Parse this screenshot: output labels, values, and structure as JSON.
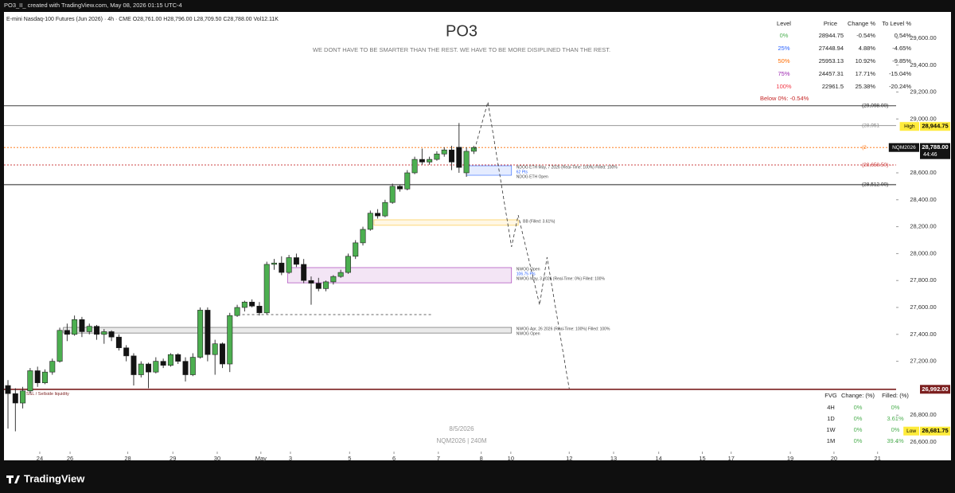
{
  "header": "PO3_II_ created with TradingView.com, May 08, 2026 01:15 UTC-4",
  "footer": "TradingView",
  "chart_data": {
    "type": "candlestick",
    "title": "PO3",
    "subtitle": "WE DONT HAVE TO BE SMARTER THAN THE REST. WE HAVE TO BE MORE DISIPLINED THAN THE REST.",
    "symbol_info": "E-mini Nasdaq-100 Futures (Jun 2026) · 4h · CME  O28,761.00  H28,796.00  L28,709.50  C28,788.00  Vol12.11K",
    "watermark": [
      "8/5/2026",
      "NQM2026 | 240M"
    ],
    "up_color": "#4caf50",
    "down_color": "#131313",
    "open": [
      27020,
      26960,
      26890,
      26980,
      27130,
      27040,
      27120,
      27200,
      27430,
      27400,
      27510,
      27420,
      27460,
      27400,
      27420,
      27380,
      27300,
      27240,
      27100,
      27180,
      27120,
      27200,
      27170,
      27250,
      27200,
      27100,
      27230,
      27580,
      27250,
      27330,
      27180,
      27540,
      27600,
      27640,
      27610,
      27560,
      27920,
      27930,
      27860,
      27970,
      27920,
      27800,
      27780,
      27740,
      27790,
      27830,
      27860,
      27980,
      28080,
      28180,
      28300,
      28280,
      28380,
      28500,
      28480,
      28600,
      28700,
      28680,
      28700,
      28740,
      28770,
      28790,
      28600,
      28760
    ],
    "high": [
      27060,
      27000,
      27010,
      27150,
      27160,
      27140,
      27220,
      27450,
      27480,
      27540,
      27530,
      27480,
      27470,
      27440,
      27430,
      27400,
      27320,
      27260,
      27200,
      27190,
      27230,
      27220,
      27260,
      27260,
      27230,
      27260,
      27600,
      27600,
      27360,
      27340,
      27560,
      27620,
      27650,
      27660,
      27640,
      27940,
      27960,
      27980,
      27990,
      28000,
      27960,
      27830,
      27820,
      27800,
      27840,
      27880,
      28000,
      28100,
      28200,
      28320,
      28330,
      28400,
      28520,
      28510,
      28620,
      28720,
      28780,
      28720,
      28760,
      28790,
      28800,
      28970,
      28790,
      28800
    ],
    "low": [
      26700,
      26680,
      26850,
      26960,
      27010,
      27030,
      27100,
      27190,
      27350,
      27390,
      27380,
      27400,
      27360,
      27330,
      27350,
      27280,
      27200,
      27020,
      27080,
      27000,
      27110,
      27150,
      27160,
      27180,
      27050,
      27090,
      27220,
      27200,
      27100,
      27150,
      27120,
      27530,
      27570,
      27600,
      27540,
      27550,
      27880,
      27840,
      27850,
      27900,
      27780,
      27620,
      27720,
      27720,
      27770,
      27820,
      27850,
      27960,
      28060,
      28170,
      28260,
      28270,
      28370,
      28460,
      28470,
      28590,
      28660,
      28660,
      28690,
      28720,
      28620,
      28600,
      28570,
      28740
    ],
    "close": [
      26960,
      26890,
      26980,
      27130,
      27040,
      27120,
      27200,
      27430,
      27400,
      27510,
      27420,
      27460,
      27400,
      27420,
      27380,
      27300,
      27240,
      27100,
      27180,
      27120,
      27200,
      27170,
      27250,
      27200,
      27100,
      27230,
      27580,
      27250,
      27330,
      27180,
      27540,
      27600,
      27640,
      27610,
      27560,
      27920,
      27930,
      27860,
      27970,
      27920,
      27800,
      27780,
      27740,
      27790,
      27830,
      27860,
      27980,
      28080,
      28180,
      28300,
      28280,
      28380,
      28500,
      28480,
      28600,
      28700,
      28680,
      28700,
      28740,
      28770,
      28680,
      28640,
      28760,
      28788
    ],
    "xlim": [
      -0.54,
      119.46
    ],
    "xticks": [
      {
        "value": 4.3,
        "label": "24"
      },
      {
        "value": 8.4,
        "label": "26"
      },
      {
        "value": 16.2,
        "label": "28"
      },
      {
        "value": 22.3,
        "label": "29"
      },
      {
        "value": 28.3,
        "label": "30"
      },
      {
        "value": 34.2,
        "label": "May"
      },
      {
        "value": 38.2,
        "label": "3"
      },
      {
        "value": 46.2,
        "label": "5"
      },
      {
        "value": 52.2,
        "label": "6"
      },
      {
        "value": 58.2,
        "label": "7"
      },
      {
        "value": 64,
        "label": "8"
      },
      {
        "value": 68,
        "label": "10"
      },
      {
        "value": 75.9,
        "label": "12"
      },
      {
        "value": 81.9,
        "label": "13"
      },
      {
        "value": 88,
        "label": "14"
      },
      {
        "value": 93.9,
        "label": "15"
      },
      {
        "value": 97.8,
        "label": "17"
      },
      {
        "value": 105.8,
        "label": "19"
      },
      {
        "value": 111.7,
        "label": "20"
      },
      {
        "value": 117.6,
        "label": "21"
      }
    ],
    "ylim": [
      26482,
      29795
    ],
    "yticks": [
      {
        "value": 29600,
        "label": "29,600.00"
      },
      {
        "value": 29400,
        "label": "29,400.00"
      },
      {
        "value": 29200,
        "label": "29,200.00"
      },
      {
        "value": 29000,
        "label": "29,000.00"
      },
      {
        "value": 28600,
        "label": "28,600.00"
      },
      {
        "value": 28400,
        "label": "28,400.00"
      },
      {
        "value": 28200,
        "label": "28,200.00"
      },
      {
        "value": 28000,
        "label": "28,000.00"
      },
      {
        "value": 27800,
        "label": "27,800.00"
      },
      {
        "value": 27600,
        "label": "27,600.00"
      },
      {
        "value": 27400,
        "label": "27,400.00"
      },
      {
        "value": 27200,
        "label": "27,200.00"
      },
      {
        "value": 26800,
        "label": "26,800.00"
      },
      {
        "value": 26600,
        "label": "26,600.00"
      }
    ],
    "levels": [
      {
        "value": 29098,
        "label": "(29,098.00) -",
        "color": "#222222",
        "dash": false
      },
      {
        "value": 28951,
        "label": "(28,951",
        "color": "#888888",
        "dash": false
      },
      {
        "value": 28788,
        "label": "(2",
        "color": "#ff6d00",
        "dash": true
      },
      {
        "value": 28658.5,
        "label": "(28,658.50) -",
        "color": "#c62828",
        "dash": true
      },
      {
        "value": 28512,
        "label": "(28,512.00) -",
        "color": "#222222",
        "dash": false
      },
      {
        "value": 26992,
        "text": "SSL / Sellside liquidity",
        "color": "#7b1f1f",
        "dash": false
      }
    ],
    "price_tags": [
      {
        "value": 28944.75,
        "label": "28,944.75",
        "tag": "High",
        "color": "#ffeb3b"
      },
      {
        "value": 28788,
        "label": "28,788.00",
        "tag": "NQM2026",
        "countdown": "44:46",
        "color": "#131313"
      },
      {
        "value": 26992,
        "label": "26,992.00",
        "color": "#7b1f1f"
      },
      {
        "value": 26681.75,
        "label": "26,681.75",
        "tag": "Low",
        "color": "#ffeb3b"
      }
    ],
    "zones": [
      {
        "x": [
          62.0,
          68.1
        ],
        "y": [
          28582,
          28653
        ],
        "color": "#2962ff",
        "texts": [
          "NDOG ETH  May, 7 2026 (Real-Time: 100%) Filled: 100%",
          "62 Pts",
          "NDOG ETH Open"
        ]
      },
      {
        "x": [
          49.5,
          69.0
        ],
        "y": [
          28210,
          28251
        ],
        "color": "#fbc02d",
        "texts": [
          "BB (Filled: 3.61%)"
        ]
      },
      {
        "x": [
          37.8,
          68.1
        ],
        "y": [
          27783,
          27896
        ],
        "color": "#9c27b0",
        "texts": [
          "NWOG Open",
          "106.75 Pts",
          "NWOG  May, 3 2026 (Real-Time: 0%) Filled: 100%"
        ]
      },
      {
        "x": [
          7.5,
          68.1
        ],
        "y": [
          27410,
          27452
        ],
        "color": "#555555",
        "texts": [
          "NWOG  Apr, 26 2026 (Real-Time: 100%) Filled: 100%",
          "NWOG Open"
        ]
      }
    ],
    "dashed_level": {
      "x": [
        31.7,
        57.5
      ],
      "value": 27547
    },
    "projection": {
      "x": [
        63.1,
        64.9,
        68.1,
        69.0,
        71.9,
        72.9,
        75.9
      ],
      "y": [
        28772,
        29127,
        28050,
        28286,
        27618,
        27973,
        26996
      ]
    },
    "level_table": {
      "headers": [
        "Level",
        "Price",
        "Change %",
        "To Level %"
      ],
      "rows": [
        {
          "level": "0%",
          "price": "28944.75",
          "change": "-0.54%",
          "to_level": "0.54%",
          "color": "#4caf50"
        },
        {
          "level": "25%",
          "price": "27448.94",
          "change": "4.88%",
          "to_level": "-4.65%",
          "color": "#2962ff"
        },
        {
          "level": "50%",
          "price": "25953.13",
          "change": "10.92%",
          "to_level": "-9.85%",
          "color": "#ff6d00"
        },
        {
          "level": "75%",
          "price": "24457.31",
          "change": "17.71%",
          "to_level": "-15.04%",
          "color": "#9c27b0"
        },
        {
          "level": "100%",
          "price": "22961.5",
          "change": "25.38%",
          "to_level": "-20.24%",
          "color": "#f23645"
        }
      ],
      "note": "Below 0%: -0.54%"
    },
    "fvg_table": {
      "headers": [
        "FVG",
        "Change: (%)",
        "Filled: (%)"
      ],
      "rows": [
        {
          "tf": "4H",
          "change": "0%",
          "filled": "0%"
        },
        {
          "tf": "1D",
          "change": "0%",
          "filled": "3.61%"
        },
        {
          "tf": "1W",
          "change": "0%",
          "filled": "0%"
        },
        {
          "tf": "1M",
          "change": "0%",
          "filled": "39.4%"
        }
      ]
    }
  }
}
